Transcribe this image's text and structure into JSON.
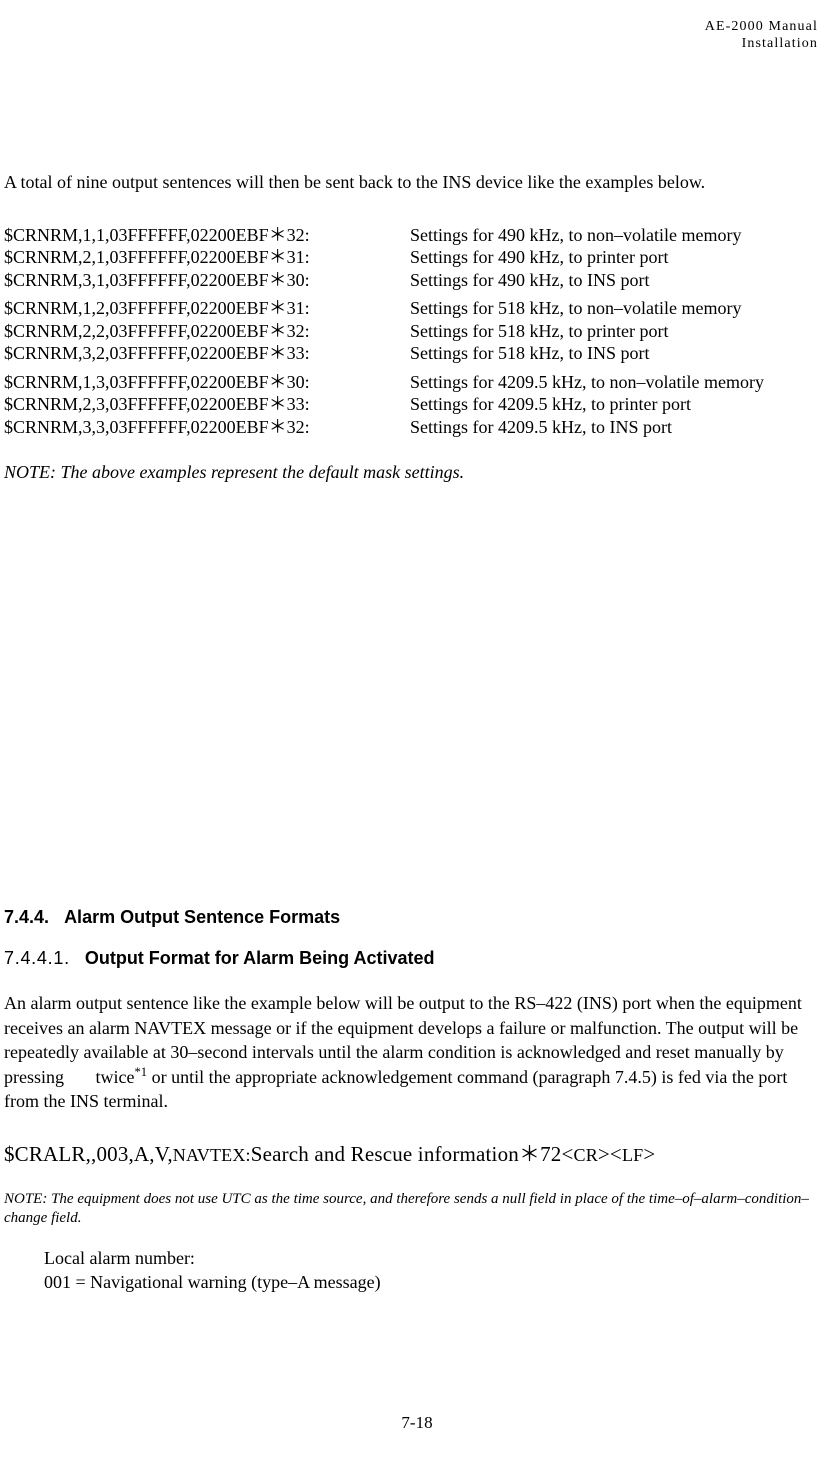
{
  "header": {
    "line1": "AE-2000 Manual",
    "line2": "Installation"
  },
  "intro": "A total of nine output sentences will then be sent back to the INS device like the examples below.",
  "groups": [
    [
      {
        "cmd": "$CRNRM,1,1,03FFFFFF,02200EBF＊32:",
        "desc": "Settings for 490 kHz, to non–volatile memory"
      },
      {
        "cmd": "$CRNRM,2,1,03FFFFFF,02200EBF＊31:",
        "desc": "Settings for 490 kHz, to printer port"
      },
      {
        "cmd": "$CRNRM,3,1,03FFFFFF,02200EBF＊30:",
        "desc": "Settings for 490 kHz, to INS port"
      }
    ],
    [
      {
        "cmd": "$CRNRM,1,2,03FFFFFF,02200EBF＊31:",
        "desc": "Settings for 518 kHz, to non–volatile memory"
      },
      {
        "cmd": "$CRNRM,2,2,03FFFFFF,02200EBF＊32:",
        "desc": "Settings for 518 kHz, to printer port"
      },
      {
        "cmd": "$CRNRM,3,2,03FFFFFF,02200EBF＊33:",
        "desc": "Settings for 518 kHz, to INS port"
      }
    ],
    [
      {
        "cmd": "$CRNRM,1,3,03FFFFFF,02200EBF＊30:",
        "desc": "Settings for 4209.5 kHz, to non–volatile memory"
      },
      {
        "cmd": "$CRNRM,2,3,03FFFFFF,02200EBF＊33:",
        "desc": "Settings for 4209.5 kHz, to printer port"
      },
      {
        "cmd": "$CRNRM,3,3,03FFFFFF,02200EBF＊32:",
        "desc": "Settings for 4209.5 kHz, to INS port"
      }
    ]
  ],
  "note1": "NOTE: The above examples represent the default mask settings.",
  "h744": {
    "num": "7.4.4.",
    "title": "Alarm Output Sentence Formats"
  },
  "h7441": {
    "num": "7.4.4.1.",
    "title": "Output Format for Alarm Being Activated"
  },
  "para2_a": "An alarm output sentence like the example below will be output to the RS–422 (INS) port when the equipment receives an alarm NAVTEX message or if the equipment develops a failure or malfunction. The output will be repeatedly available at 30–second intervals until the alarm condition is acknowledged and reset manually by pressing       twice",
  "para2_sup": "*1",
  "para2_b": " or until the appropriate acknowledgement command (paragraph 7.4.5) is fed via the port from the INS terminal.",
  "sentence": {
    "p1": "$CRALR,,003,A,V,",
    "p2": "NAVTEX:",
    "p3": "Search and Rescue information",
    "p4": "＊72<",
    "p5": "CR",
    "p6": "><",
    "p7": "LF",
    "p8": ">"
  },
  "note2": "NOTE: The equipment does not use UTC as the time source, and therefore sends a null field in place of the time–of–alarm–condition–change field.",
  "alarm": {
    "l1": "Local alarm number:",
    "l2": "001 = Navigational warning (type–A message)"
  },
  "pagenum": "7-18"
}
